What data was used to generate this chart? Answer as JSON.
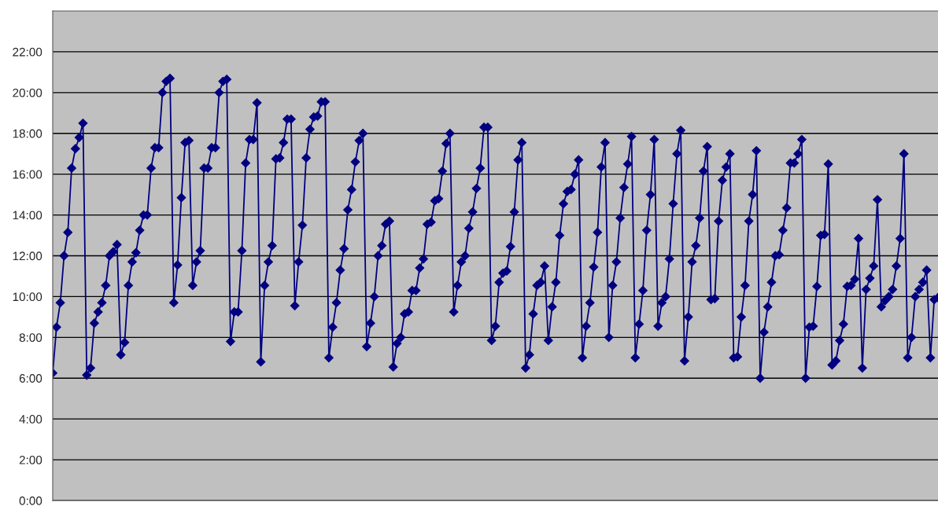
{
  "chart_data": {
    "type": "line",
    "categories": [
      null,
      null,
      null,
      null,
      null,
      null,
      null,
      null,
      null,
      null,
      null,
      null,
      null,
      null,
      null,
      null,
      null,
      null,
      null,
      null,
      null,
      null,
      null,
      null,
      null,
      null,
      null,
      null,
      null,
      null,
      null,
      null,
      null,
      null,
      null,
      null,
      null,
      null,
      null,
      null,
      null,
      null,
      null,
      null,
      null,
      null,
      null,
      null,
      null,
      null,
      null,
      null,
      null,
      null,
      null,
      null,
      null,
      null,
      null,
      null,
      null,
      null,
      null,
      null,
      null,
      null,
      null,
      null,
      null,
      null,
      null,
      null,
      null,
      null,
      null,
      null,
      null,
      null,
      null,
      null,
      null,
      null,
      null,
      null,
      null,
      null,
      null,
      null,
      null,
      null,
      null,
      null,
      null,
      null,
      null,
      null,
      null,
      null,
      null,
      null,
      null,
      null,
      null,
      null,
      null,
      null,
      null,
      null,
      null,
      null,
      null,
      null,
      null,
      null,
      null,
      null,
      null,
      null,
      null,
      null,
      null,
      null,
      null,
      null,
      null,
      null,
      null,
      null,
      null,
      null,
      null,
      null,
      null,
      null,
      null,
      null,
      null,
      null,
      null,
      null,
      null,
      null,
      null,
      null,
      null,
      null,
      null,
      null,
      null,
      null,
      null,
      null,
      null,
      null,
      null,
      null,
      null,
      null,
      null,
      null,
      null,
      null,
      null,
      null,
      null,
      null,
      null,
      null,
      null,
      null,
      null,
      null,
      null,
      null,
      null,
      null,
      null,
      null,
      null,
      null,
      null,
      null,
      null,
      null,
      null,
      null,
      null,
      null,
      null,
      null,
      null,
      null,
      null,
      null,
      null,
      null,
      null,
      null,
      null,
      null,
      null,
      null,
      null,
      null,
      null,
      null,
      null,
      null,
      null,
      null,
      null,
      null,
      null,
      null,
      null,
      null,
      null,
      null,
      null,
      null,
      null,
      null,
      null,
      null,
      null,
      null,
      null,
      null,
      null,
      null,
      null,
      null,
      null,
      null,
      null
    ],
    "series": [
      {
        "color": "#000080",
        "values": [
          6.25,
          8.5,
          9.7,
          12.0,
          13.15,
          16.3,
          17.25,
          17.8,
          18.5,
          6.15,
          6.5,
          8.7,
          9.25,
          9.7,
          10.55,
          12.0,
          12.2,
          12.55,
          7.15,
          7.75,
          10.55,
          11.7,
          12.15,
          13.25,
          14.0,
          14.0,
          16.3,
          17.3,
          17.3,
          20.0,
          20.55,
          20.7,
          9.7,
          11.55,
          14.85,
          17.55,
          17.65,
          10.55,
          11.7,
          12.25,
          16.3,
          16.3,
          17.3,
          17.3,
          20.0,
          20.55,
          20.65,
          7.8,
          9.25,
          9.25,
          12.25,
          16.55,
          17.7,
          17.7,
          19.5,
          6.8,
          10.55,
          11.7,
          12.5,
          16.75,
          16.8,
          17.55,
          18.7,
          18.7,
          9.55,
          11.7,
          13.5,
          16.8,
          18.2,
          18.8,
          18.85,
          19.55,
          19.55,
          7.0,
          8.5,
          9.7,
          11.3,
          12.35,
          14.25,
          15.25,
          16.6,
          17.65,
          18.0,
          7.55,
          8.7,
          10.0,
          12.0,
          12.5,
          13.55,
          13.7,
          6.55,
          7.7,
          8.0,
          9.15,
          9.25,
          10.3,
          10.3,
          11.4,
          11.85,
          13.55,
          13.65,
          14.7,
          14.8,
          16.15,
          17.5,
          18.0,
          9.25,
          10.55,
          11.7,
          12.0,
          13.35,
          14.15,
          15.3,
          16.3,
          18.3,
          18.3,
          7.85,
          8.55,
          10.7,
          11.15,
          11.25,
          12.45,
          14.15,
          16.7,
          17.55,
          6.5,
          7.15,
          9.15,
          10.55,
          10.7,
          11.5,
          7.85,
          9.5,
          10.7,
          13.0,
          14.55,
          15.15,
          15.25,
          16.0,
          16.7,
          7.0,
          8.55,
          9.7,
          11.45,
          13.15,
          16.35,
          17.55,
          8.0,
          10.55,
          11.7,
          13.85,
          15.35,
          16.5,
          17.85,
          7.0,
          8.65,
          10.3,
          13.25,
          15.0,
          17.7,
          8.55,
          9.7,
          10.0,
          11.85,
          14.55,
          17.0,
          18.15,
          6.85,
          9.0,
          11.7,
          12.5,
          13.85,
          16.15,
          17.35,
          9.85,
          9.9,
          13.7,
          15.7,
          16.35,
          17.0,
          7.0,
          7.05,
          9.0,
          10.55,
          13.7,
          15.0,
          17.15,
          6.0,
          8.25,
          9.5,
          10.7,
          12.0,
          12.05,
          13.25,
          14.35,
          16.55,
          16.55,
          17.0,
          17.7,
          6.0,
          8.5,
          8.55,
          10.5,
          13.0,
          13.05,
          16.5,
          6.65,
          6.85,
          7.85,
          8.65,
          10.5,
          10.55,
          10.85,
          12.85,
          6.5,
          10.35,
          10.9,
          11.5,
          14.75,
          9.5,
          9.8,
          10.0,
          10.35,
          11.5,
          12.85,
          17.0,
          7.0,
          8.0,
          10.0,
          10.35,
          10.7,
          11.3,
          7.0,
          9.85,
          9.95
        ]
      }
    ],
    "ylim": [
      0,
      24
    ],
    "yticks": [
      {
        "value": 0,
        "label": "0:00"
      },
      {
        "value": 2,
        "label": "2:00"
      },
      {
        "value": 4,
        "label": "4:00"
      },
      {
        "value": 6,
        "label": "6:00"
      },
      {
        "value": 8,
        "label": "8:00"
      },
      {
        "value": 10,
        "label": "10:00"
      },
      {
        "value": 12,
        "label": "12:00"
      },
      {
        "value": 14,
        "label": "14:00"
      },
      {
        "value": 16,
        "label": "16:00"
      },
      {
        "value": 18,
        "label": "18:00"
      },
      {
        "value": 20,
        "label": "20:00"
      },
      {
        "value": 22,
        "label": "22:00"
      }
    ],
    "tick_labels": "y",
    "grid": "y",
    "marker": "diamond",
    "line_style": "solid"
  }
}
